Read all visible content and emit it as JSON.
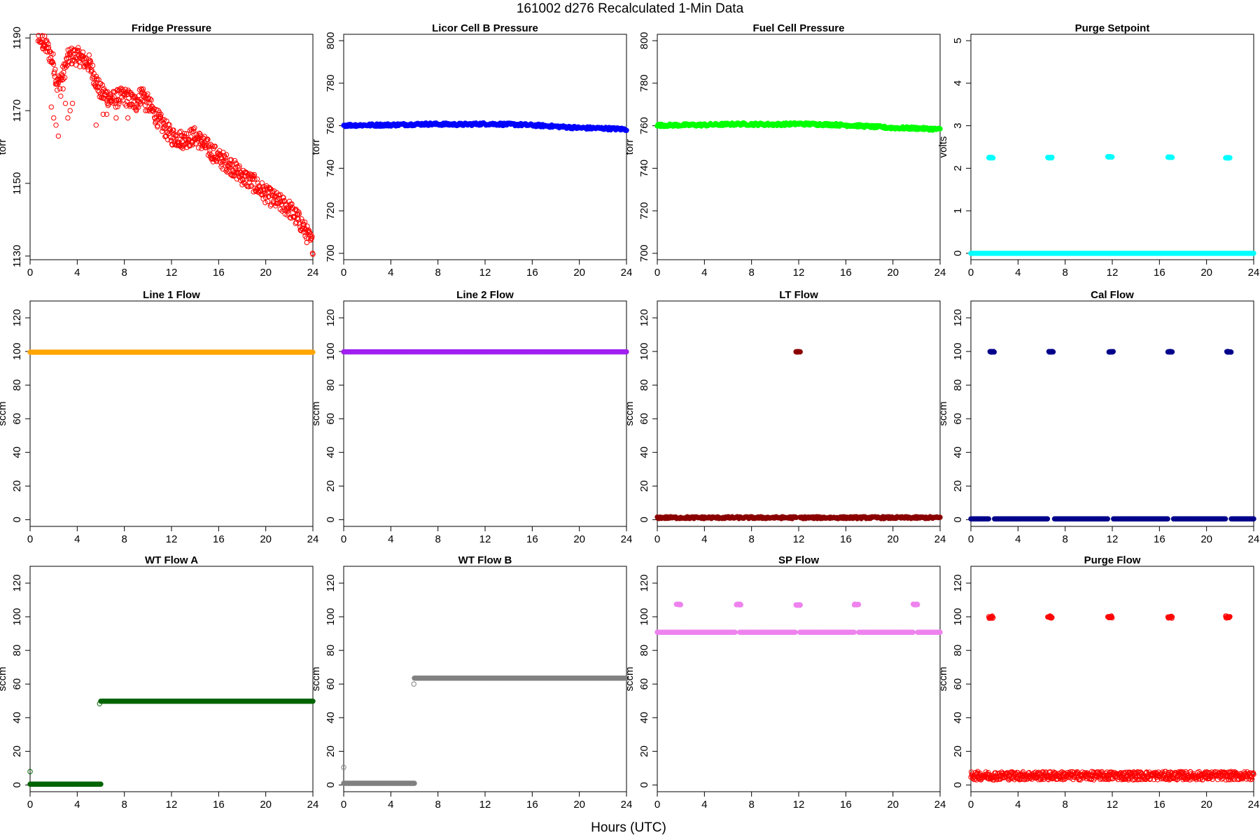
{
  "figure": {
    "title": "161002    d276    Recalculated 1-Min Data",
    "xlabel": "Hours (UTC)"
  },
  "chart_data": [
    {
      "type": "scatter",
      "title": "Fridge Pressure",
      "ylabel": "torr",
      "xlim": [
        0,
        24
      ],
      "ylim": [
        1129,
        1191
      ],
      "xticks": [
        0,
        4,
        8,
        12,
        16,
        20,
        24
      ],
      "yticks": [
        1130,
        1150,
        1170,
        1190
      ],
      "color": "#ff0000",
      "marker": "open-circle",
      "segments": [
        {
          "x": [
            0,
            0.3,
            0.8,
            1.5,
            2.0,
            2.3,
            2.8,
            3.3,
            4.0,
            5.0,
            6.0,
            7.0,
            8.0,
            9.0,
            9.5,
            10.0,
            11.0,
            12.0,
            13.0,
            14.0,
            15.0,
            16.0,
            17.0,
            18.0,
            19.0,
            20.0,
            21.0,
            22.0,
            22.5,
            23.0,
            23.5,
            24.0
          ],
          "y": [
            1196,
            1195,
            1190,
            1187,
            1183,
            1177,
            1180,
            1185,
            1185,
            1183,
            1175,
            1173,
            1174,
            1172,
            1175,
            1172,
            1167,
            1163,
            1162,
            1163,
            1160,
            1157,
            1155,
            1152,
            1150,
            1147,
            1145,
            1143,
            1141,
            1139,
            1136,
            1133
          ],
          "spread": 2.5
        }
      ],
      "outliers": [
        {
          "x": [
            1.8,
            2.0,
            2.2,
            2.4,
            2.8,
            3.0,
            3.2,
            3.4,
            3.6,
            2.6,
            5.6,
            6.2,
            6.5,
            7.3,
            8.3,
            9.8
          ],
          "y": [
            1171,
            1168,
            1166,
            1163,
            1176,
            1172,
            1168,
            1170,
            1172,
            1174,
            1166,
            1169,
            1169,
            1168,
            1168,
            1170
          ]
        }
      ]
    },
    {
      "type": "scatter",
      "title": "Licor Cell B Pressure",
      "ylabel": "torr",
      "xlim": [
        0,
        24
      ],
      "ylim": [
        697,
        803
      ],
      "xticks": [
        0,
        4,
        8,
        12,
        16,
        20,
        24
      ],
      "yticks": [
        700,
        720,
        740,
        760,
        780,
        800
      ],
      "color": "#0000ff",
      "marker": "filled",
      "segments": [
        {
          "x": [
            0,
            4,
            7,
            10,
            12,
            15,
            17,
            20,
            22,
            24
          ],
          "y": [
            760.2,
            760.4,
            760.8,
            760.6,
            760.9,
            760.5,
            760.0,
            759.0,
            758.8,
            758.3
          ],
          "spread": 0.6
        }
      ]
    },
    {
      "type": "scatter",
      "title": "Fuel Cell Pressure",
      "ylabel": "torr",
      "xlim": [
        0,
        24
      ],
      "ylim": [
        697,
        803
      ],
      "xticks": [
        0,
        4,
        8,
        12,
        16,
        20,
        24
      ],
      "yticks": [
        700,
        720,
        740,
        760,
        780,
        800
      ],
      "color": "#00ff00",
      "marker": "filled",
      "segments": [
        {
          "x": [
            0,
            4,
            7,
            10,
            12,
            15,
            17,
            20,
            22,
            24
          ],
          "y": [
            760.2,
            760.4,
            760.8,
            760.6,
            760.9,
            760.5,
            760.0,
            759.0,
            758.8,
            758.3
          ],
          "spread": 0.6
        }
      ]
    },
    {
      "type": "scatter",
      "title": "Purge Setpoint",
      "ylabel": "volts",
      "xlim": [
        0,
        24
      ],
      "ylim": [
        -0.15,
        5.15
      ],
      "xticks": [
        0,
        4,
        8,
        12,
        16,
        20,
        24
      ],
      "yticks": [
        0,
        1,
        2,
        3,
        4,
        5
      ],
      "color": "#00ffff",
      "marker": "filled",
      "segments": [
        {
          "x": [
            0,
            24
          ],
          "y": [
            0,
            0
          ],
          "spread": 0
        }
      ],
      "clusters": [
        {
          "x": 1.7,
          "y": 2.25
        },
        {
          "x": 6.7,
          "y": 2.25
        },
        {
          "x": 11.8,
          "y": 2.27
        },
        {
          "x": 16.9,
          "y": 2.26
        },
        {
          "x": 21.8,
          "y": 2.25
        }
      ]
    },
    {
      "type": "scatter",
      "title": "Line 1 Flow",
      "ylabel": "sccm",
      "xlim": [
        0,
        24
      ],
      "ylim": [
        -4,
        130
      ],
      "xticks": [
        0,
        4,
        8,
        12,
        16,
        20,
        24
      ],
      "yticks": [
        0,
        20,
        40,
        60,
        80,
        100,
        120
      ],
      "color": "#ffa500",
      "marker": "filled",
      "segments": [
        {
          "x": [
            0,
            24
          ],
          "y": [
            99.6,
            99.6
          ],
          "spread": 0
        }
      ]
    },
    {
      "type": "scatter",
      "title": "Line 2 Flow",
      "ylabel": "sccm",
      "xlim": [
        0,
        24
      ],
      "ylim": [
        -4,
        130
      ],
      "xticks": [
        0,
        4,
        8,
        12,
        16,
        20,
        24
      ],
      "yticks": [
        0,
        20,
        40,
        60,
        80,
        100,
        120
      ],
      "color": "#a020f0",
      "marker": "filled",
      "segments": [
        {
          "x": [
            0,
            24
          ],
          "y": [
            99.8,
            99.8
          ],
          "spread": 0
        }
      ]
    },
    {
      "type": "scatter",
      "title": "LT Flow",
      "ylabel": "sccm",
      "xlim": [
        0,
        24
      ],
      "ylim": [
        -4,
        130
      ],
      "xticks": [
        0,
        4,
        8,
        12,
        16,
        20,
        24
      ],
      "yticks": [
        0,
        20,
        40,
        60,
        80,
        100,
        120
      ],
      "color": "#8b0000",
      "marker": "filled",
      "segments": [
        {
          "x": [
            0,
            11.8
          ],
          "y": [
            1.2,
            1.2
          ],
          "spread": 0.6
        },
        {
          "x": [
            12.1,
            24
          ],
          "y": [
            1.2,
            1.2
          ],
          "spread": 0.6
        }
      ],
      "clusters": [
        {
          "x": 11.95,
          "y": 99.8
        }
      ]
    },
    {
      "type": "scatter",
      "title": "Cal Flow",
      "ylabel": "sccm",
      "xlim": [
        0,
        24
      ],
      "ylim": [
        -4,
        130
      ],
      "xticks": [
        0,
        4,
        8,
        12,
        16,
        20,
        24
      ],
      "yticks": [
        0,
        20,
        40,
        60,
        80,
        100,
        120
      ],
      "color": "#00008b",
      "marker": "filled",
      "segments": [
        {
          "x": [
            0,
            1.5
          ],
          "y": [
            0.5,
            0.5
          ],
          "spread": 0
        },
        {
          "x": [
            2.0,
            6.5
          ],
          "y": [
            0.5,
            0.5
          ],
          "spread": 0
        },
        {
          "x": [
            7.1,
            11.6
          ],
          "y": [
            0.5,
            0.5
          ],
          "spread": 0
        },
        {
          "x": [
            12.1,
            16.7
          ],
          "y": [
            0.5,
            0.5
          ],
          "spread": 0
        },
        {
          "x": [
            17.2,
            21.6
          ],
          "y": [
            0.5,
            0.5
          ],
          "spread": 0
        },
        {
          "x": [
            22.1,
            24
          ],
          "y": [
            0.5,
            0.5
          ],
          "spread": 0
        }
      ],
      "clusters": [
        {
          "x": 1.8,
          "y": 99.8
        },
        {
          "x": 6.8,
          "y": 99.8
        },
        {
          "x": 11.9,
          "y": 99.8
        },
        {
          "x": 16.9,
          "y": 99.8
        },
        {
          "x": 21.9,
          "y": 99.8
        }
      ]
    },
    {
      "type": "scatter",
      "title": "WT Flow A",
      "ylabel": "sccm",
      "xlim": [
        0,
        24
      ],
      "ylim": [
        -4,
        130
      ],
      "xticks": [
        0,
        4,
        8,
        12,
        16,
        20,
        24
      ],
      "yticks": [
        0,
        20,
        40,
        60,
        80,
        100,
        120
      ],
      "color": "#006400",
      "marker": "filled",
      "segments": [
        {
          "x": [
            0,
            6.0
          ],
          "y": [
            0.5,
            0.5
          ],
          "spread": 0
        },
        {
          "x": [
            6.0,
            24
          ],
          "y": [
            49.8,
            49.8
          ],
          "spread": 0
        }
      ],
      "outliers": [
        {
          "x": [
            0,
            5.9
          ],
          "y": [
            8.0,
            48.3
          ]
        }
      ]
    },
    {
      "type": "scatter",
      "title": "WT Flow B",
      "ylabel": "sccm",
      "xlim": [
        0,
        24
      ],
      "ylim": [
        -4,
        130
      ],
      "xticks": [
        0,
        4,
        8,
        12,
        16,
        20,
        24
      ],
      "yticks": [
        0,
        20,
        40,
        60,
        80,
        100,
        120
      ],
      "color": "#808080",
      "marker": "filled",
      "segments": [
        {
          "x": [
            0,
            6.0
          ],
          "y": [
            1.0,
            1.0
          ],
          "spread": 0
        },
        {
          "x": [
            6.0,
            24
          ],
          "y": [
            63.5,
            63.5
          ],
          "spread": 0
        }
      ],
      "outliers": [
        {
          "x": [
            0,
            5.95
          ],
          "y": [
            10.5,
            60.0
          ]
        }
      ]
    },
    {
      "type": "scatter",
      "title": "SP Flow",
      "ylabel": "sccm",
      "xlim": [
        0,
        24
      ],
      "ylim": [
        -4,
        130
      ],
      "xticks": [
        0,
        4,
        8,
        12,
        16,
        20,
        24
      ],
      "yticks": [
        0,
        20,
        40,
        60,
        80,
        100,
        120
      ],
      "color": "#ee82ee",
      "marker": "filled",
      "segments": [
        {
          "x": [
            0,
            6.6
          ],
          "y": [
            90.8,
            90.8
          ],
          "spread": 0
        },
        {
          "x": [
            7.0,
            11.7
          ],
          "y": [
            90.8,
            90.8
          ],
          "spread": 0
        },
        {
          "x": [
            12.1,
            16.7
          ],
          "y": [
            90.8,
            90.8
          ],
          "spread": 0
        },
        {
          "x": [
            17.1,
            21.7
          ],
          "y": [
            90.8,
            90.8
          ],
          "spread": 0
        },
        {
          "x": [
            22.1,
            24
          ],
          "y": [
            90.8,
            90.8
          ],
          "spread": 0
        }
      ],
      "clusters": [
        {
          "x": 1.8,
          "y": 107.3
        },
        {
          "x": 6.9,
          "y": 107.3
        },
        {
          "x": 11.95,
          "y": 107.0
        },
        {
          "x": 16.9,
          "y": 107.3
        },
        {
          "x": 21.9,
          "y": 107.3
        }
      ]
    },
    {
      "type": "scatter",
      "title": "Purge Flow",
      "ylabel": "sccm",
      "xlim": [
        0,
        24
      ],
      "ylim": [
        -4,
        130
      ],
      "xticks": [
        0,
        4,
        8,
        12,
        16,
        20,
        24
      ],
      "yticks": [
        0,
        20,
        40,
        60,
        80,
        100,
        120
      ],
      "color": "#ff0000",
      "marker": "open-circle",
      "segments": [
        {
          "x": [
            0,
            24
          ],
          "y": [
            5.5,
            5.5
          ],
          "spread": 2.5
        }
      ],
      "clusters": [
        {
          "x": 1.7,
          "y": 99.8
        },
        {
          "x": 6.7,
          "y": 99.8
        },
        {
          "x": 11.8,
          "y": 99.8
        },
        {
          "x": 16.9,
          "y": 99.8
        },
        {
          "x": 21.8,
          "y": 99.8
        }
      ]
    }
  ]
}
